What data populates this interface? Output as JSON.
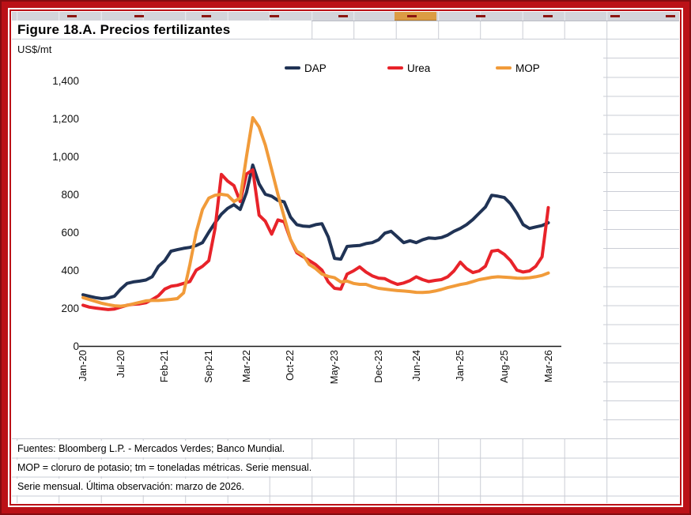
{
  "window": {
    "frame_color": "#bb1117",
    "highlight_cell_color": "#dc9c44"
  },
  "figure": {
    "title": "Figure 18.A. Precios fertilizantes",
    "unit_label": "US$/mt",
    "notes": [
      "Fuentes: Bloomberg L.P. - Mercados Verdes; Banco Mundial.",
      "MOP = cloruro de potasio; tm = toneladas métricas. Serie mensual.",
      "Serie mensual. Última observación: marzo de 2026."
    ]
  },
  "chart_data": {
    "type": "line",
    "title": "Figure 18.A. Precios fertilizantes",
    "ylabel": "US$/mt",
    "ylim": [
      0,
      1400
    ],
    "grid": "off",
    "legend_position": "top",
    "x_unit": "month",
    "x_start": "Jan-20",
    "x_end": "Mar-26",
    "n_points": 75,
    "x_ticks": [
      {
        "label": "Jan-20",
        "index": 0
      },
      {
        "label": "Jul-20",
        "index": 6
      },
      {
        "label": "Feb-21",
        "index": 13
      },
      {
        "label": "Sep-21",
        "index": 20
      },
      {
        "label": "Mar-22",
        "index": 26
      },
      {
        "label": "Oct-22",
        "index": 33
      },
      {
        "label": "May-23",
        "index": 40
      },
      {
        "label": "Dec-23",
        "index": 47
      },
      {
        "label": "Jun-24",
        "index": 53
      },
      {
        "label": "Jan-25",
        "index": 60
      },
      {
        "label": "Aug-25",
        "index": 67
      },
      {
        "label": "Mar-26",
        "index": 74
      }
    ],
    "y_ticks": [
      {
        "value": 1400,
        "label": "1,400"
      },
      {
        "value": 1200,
        "label": "1,200"
      },
      {
        "value": 1000,
        "label": "1,000"
      },
      {
        "value": 800,
        "label": "800"
      },
      {
        "value": 600,
        "label": "600"
      },
      {
        "value": 400,
        "label": "400"
      },
      {
        "value": 200,
        "label": "200"
      },
      {
        "value": 0,
        "label": "0"
      }
    ],
    "series": [
      {
        "name": "DAP",
        "color": "#203355",
        "values": [
          270,
          262,
          255,
          250,
          253,
          263,
          300,
          330,
          338,
          342,
          348,
          365,
          420,
          450,
          500,
          508,
          515,
          520,
          530,
          545,
          600,
          650,
          695,
          726,
          745,
          720,
          810,
          954,
          855,
          800,
          790,
          768,
          760,
          680,
          640,
          632,
          630,
          640,
          645,
          575,
          462,
          458,
          525,
          528,
          530,
          540,
          545,
          560,
          595,
          605,
          575,
          545,
          555,
          545,
          560,
          570,
          567,
          572,
          585,
          605,
          620,
          640,
          667,
          700,
          733,
          795,
          790,
          783,
          750,
          700,
          640,
          620,
          628,
          635,
          650
        ]
      },
      {
        "name": "Urea",
        "color": "#e8232a",
        "values": [
          215,
          205,
          200,
          196,
          192,
          195,
          205,
          215,
          220,
          222,
          228,
          245,
          265,
          300,
          315,
          320,
          330,
          340,
          400,
          420,
          450,
          620,
          905,
          870,
          846,
          762,
          907,
          929,
          690,
          658,
          590,
          665,
          655,
          562,
          492,
          471,
          450,
          429,
          400,
          338,
          304,
          300,
          379,
          396,
          417,
          390,
          370,
          358,
          355,
          338,
          325,
          332,
          345,
          365,
          350,
          340,
          346,
          350,
          365,
          396,
          442,
          408,
          387,
          396,
          421,
          500,
          505,
          483,
          450,
          400,
          390,
          396,
          420,
          470,
          730
        ]
      },
      {
        "name": "MOP",
        "color": "#f19b3a",
        "values": [
          255,
          245,
          235,
          225,
          218,
          212,
          210,
          214,
          222,
          230,
          238,
          240,
          240,
          243,
          246,
          250,
          280,
          430,
          600,
          720,
          780,
          795,
          800,
          795,
          762,
          780,
          1000,
          1204,
          1155,
          1060,
          930,
          800,
          679,
          562,
          500,
          479,
          429,
          408,
          379,
          367,
          360,
          338,
          342,
          330,
          325,
          325,
          313,
          304,
          300,
          296,
          292,
          290,
          287,
          283,
          282,
          284,
          290,
          298,
          308,
          316,
          324,
          330,
          340,
          350,
          356,
          362,
          365,
          363,
          361,
          358,
          357,
          360,
          365,
          372,
          385
        ]
      }
    ]
  }
}
